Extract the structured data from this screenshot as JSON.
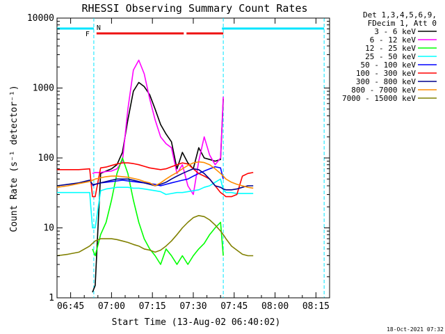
{
  "chart_data": {
    "type": "line",
    "title": "RHESSI Observing Summary Count Rates",
    "xlabel": "Start Time (13-Aug-02 06:40:02)",
    "ylabel": "Count Rate (s⁻¹ detector⁻¹)",
    "yscale": "log",
    "ylim": [
      1,
      10000
    ],
    "xlim_minutes": [
      0,
      100
    ],
    "x_tick_labels": [
      "06:45",
      "07:00",
      "07:15",
      "07:30",
      "07:45",
      "08:00",
      "08:15"
    ],
    "x_tick_minutes": [
      5,
      20,
      35,
      50,
      65,
      80,
      95
    ],
    "y_tick_labels": [
      "1",
      "10",
      "100",
      "1000",
      "10000"
    ],
    "y_tick_values": [
      1,
      10,
      100,
      1000,
      10000
    ],
    "legend_header": [
      "Det 1,3,4,5,6,9,",
      "FDecim 1, Att 0"
    ],
    "legend_placement": "right",
    "footer_date": "18-Oct-2021 07:32",
    "flag_labels": {
      "flare": "F",
      "night": "N"
    },
    "night_intervals_minutes": [
      [
        0,
        13.5
      ],
      [
        60.5,
        98
      ]
    ],
    "flare_intervals_minutes": [
      [
        14.5,
        46.5
      ],
      [
        47.5,
        61
      ]
    ],
    "vertical_markers_minutes": [
      13.5,
      61,
      98
    ],
    "series": [
      {
        "name": "3 - 6 keV",
        "color": "#000000",
        "x": [
          13,
          14,
          16,
          18,
          20,
          22,
          24,
          26,
          28,
          30,
          32,
          34,
          36,
          38,
          40,
          42,
          44,
          46,
          48,
          50,
          52,
          54,
          56,
          58,
          60,
          61
        ],
        "y": [
          1.2,
          1.5,
          60,
          65,
          70,
          80,
          120,
          350,
          900,
          1200,
          1050,
          800,
          500,
          300,
          220,
          170,
          70,
          120,
          85,
          70,
          140,
          100,
          95,
          90,
          95,
          700
        ]
      },
      {
        "name": "6 - 12 keV",
        "color": "#ff00ff",
        "x": [
          13,
          14,
          16,
          18,
          20,
          22,
          24,
          26,
          28,
          30,
          32,
          34,
          36,
          38,
          40,
          42,
          44,
          46,
          48,
          50,
          52,
          54,
          56,
          58,
          60,
          61
        ],
        "y": [
          60,
          62,
          62,
          64,
          65,
          70,
          90,
          500,
          1800,
          2500,
          1600,
          700,
          350,
          200,
          160,
          140,
          60,
          80,
          40,
          30,
          90,
          200,
          110,
          80,
          100,
          750
        ]
      },
      {
        "name": "12 - 25 keV",
        "color": "#00ff00",
        "x": [
          13,
          14,
          16,
          18,
          20,
          22,
          24,
          26,
          28,
          30,
          32,
          34,
          36,
          38,
          40,
          42,
          44,
          46,
          48,
          50,
          52,
          54,
          56,
          58,
          60,
          61
        ],
        "y": [
          5,
          4,
          8,
          12,
          25,
          60,
          100,
          60,
          25,
          12,
          7,
          5,
          4,
          3,
          5,
          4,
          3,
          4,
          3,
          4,
          5,
          6,
          8,
          10,
          12,
          4
        ]
      },
      {
        "name": "25 - 50 keV",
        "color": "#00ffff",
        "x": [
          0,
          4,
          8,
          12,
          13,
          14,
          16,
          18,
          20,
          22,
          24,
          26,
          28,
          30,
          32,
          34,
          36,
          38,
          40,
          42,
          44,
          46,
          48,
          50,
          52,
          54,
          56,
          58,
          60,
          61,
          62,
          64,
          66,
          68,
          70,
          72
        ],
        "y": [
          32,
          32,
          32,
          32,
          10,
          10,
          34,
          36,
          37,
          38,
          38,
          38,
          37,
          37,
          36,
          35,
          34,
          33,
          30,
          31,
          32,
          32,
          33,
          34,
          35,
          38,
          40,
          45,
          50,
          35,
          32,
          32,
          31,
          31,
          31,
          31
        ]
      },
      {
        "name": "50 - 100 keV",
        "color": "#0000ff",
        "x": [
          13,
          14,
          16,
          18,
          20,
          22,
          24,
          26,
          28,
          30,
          32,
          34,
          36,
          38,
          40,
          42,
          44,
          46,
          48,
          50,
          52,
          54,
          56,
          58,
          60,
          61
        ],
        "y": [
          40,
          42,
          44,
          45,
          46,
          47,
          48,
          47,
          46,
          45,
          44,
          43,
          42,
          40,
          42,
          44,
          46,
          48,
          50,
          55,
          60,
          65,
          70,
          75,
          72,
          50
        ]
      },
      {
        "name": "100 - 300 keV",
        "color": "#ff0000",
        "x": [
          0,
          4,
          8,
          12,
          13,
          14,
          16,
          18,
          20,
          22,
          24,
          26,
          28,
          30,
          32,
          34,
          36,
          38,
          40,
          42,
          44,
          46,
          48,
          50,
          52,
          54,
          56,
          58,
          60,
          61,
          62,
          64,
          66,
          68,
          70,
          72
        ],
        "y": [
          68,
          68,
          68,
          70,
          28,
          28,
          72,
          74,
          78,
          82,
          85,
          85,
          83,
          80,
          76,
          72,
          70,
          68,
          70,
          75,
          80,
          85,
          82,
          70,
          60,
          55,
          50,
          40,
          32,
          30,
          28,
          28,
          30,
          55,
          60,
          62
        ]
      },
      {
        "name": "300 - 800 keV",
        "color": "#00008b",
        "x": [
          0,
          4,
          8,
          12,
          13,
          14,
          16,
          18,
          20,
          22,
          24,
          26,
          28,
          30,
          32,
          34,
          36,
          38,
          40,
          42,
          44,
          46,
          48,
          50,
          52,
          54,
          56,
          58,
          60,
          61,
          62,
          64,
          66,
          68,
          70,
          72
        ],
        "y": [
          40,
          42,
          44,
          48,
          42,
          42,
          44,
          46,
          48,
          50,
          50,
          50,
          48,
          46,
          44,
          42,
          40,
          42,
          45,
          50,
          55,
          60,
          65,
          70,
          68,
          60,
          50,
          40,
          38,
          36,
          35,
          35,
          36,
          38,
          40,
          40
        ]
      },
      {
        "name": "800 - 7000 keV",
        "color": "#ff8c00",
        "x": [
          0,
          4,
          8,
          12,
          13,
          14,
          16,
          18,
          20,
          22,
          24,
          26,
          28,
          30,
          32,
          34,
          36,
          38,
          40,
          42,
          44,
          46,
          48,
          50,
          52,
          54,
          56,
          58,
          60,
          61,
          62,
          64,
          66,
          68,
          70,
          72
        ],
        "y": [
          38,
          40,
          43,
          46,
          48,
          50,
          52,
          54,
          55,
          55,
          54,
          53,
          51,
          49,
          46,
          44,
          40,
          44,
          50,
          56,
          62,
          70,
          78,
          85,
          88,
          86,
          80,
          70,
          60,
          55,
          50,
          45,
          42,
          40,
          38,
          37
        ]
      },
      {
        "name": "7000 - 15000 keV",
        "color": "#808000",
        "x": [
          0,
          4,
          8,
          12,
          13,
          14,
          16,
          18,
          20,
          22,
          24,
          26,
          28,
          30,
          32,
          34,
          36,
          38,
          40,
          42,
          44,
          46,
          48,
          50,
          52,
          54,
          56,
          58,
          60,
          61,
          62,
          64,
          66,
          68,
          70,
          72
        ],
        "y": [
          4,
          4.2,
          4.5,
          5.5,
          6,
          6.5,
          7,
          7,
          7,
          6.8,
          6.5,
          6.2,
          5.8,
          5.5,
          5,
          4.8,
          4.5,
          4.8,
          5.5,
          6.5,
          8,
          10,
          12,
          14,
          15,
          14.5,
          13,
          11,
          9,
          8,
          7,
          5.5,
          4.8,
          4.2,
          4,
          4
        ]
      }
    ]
  }
}
